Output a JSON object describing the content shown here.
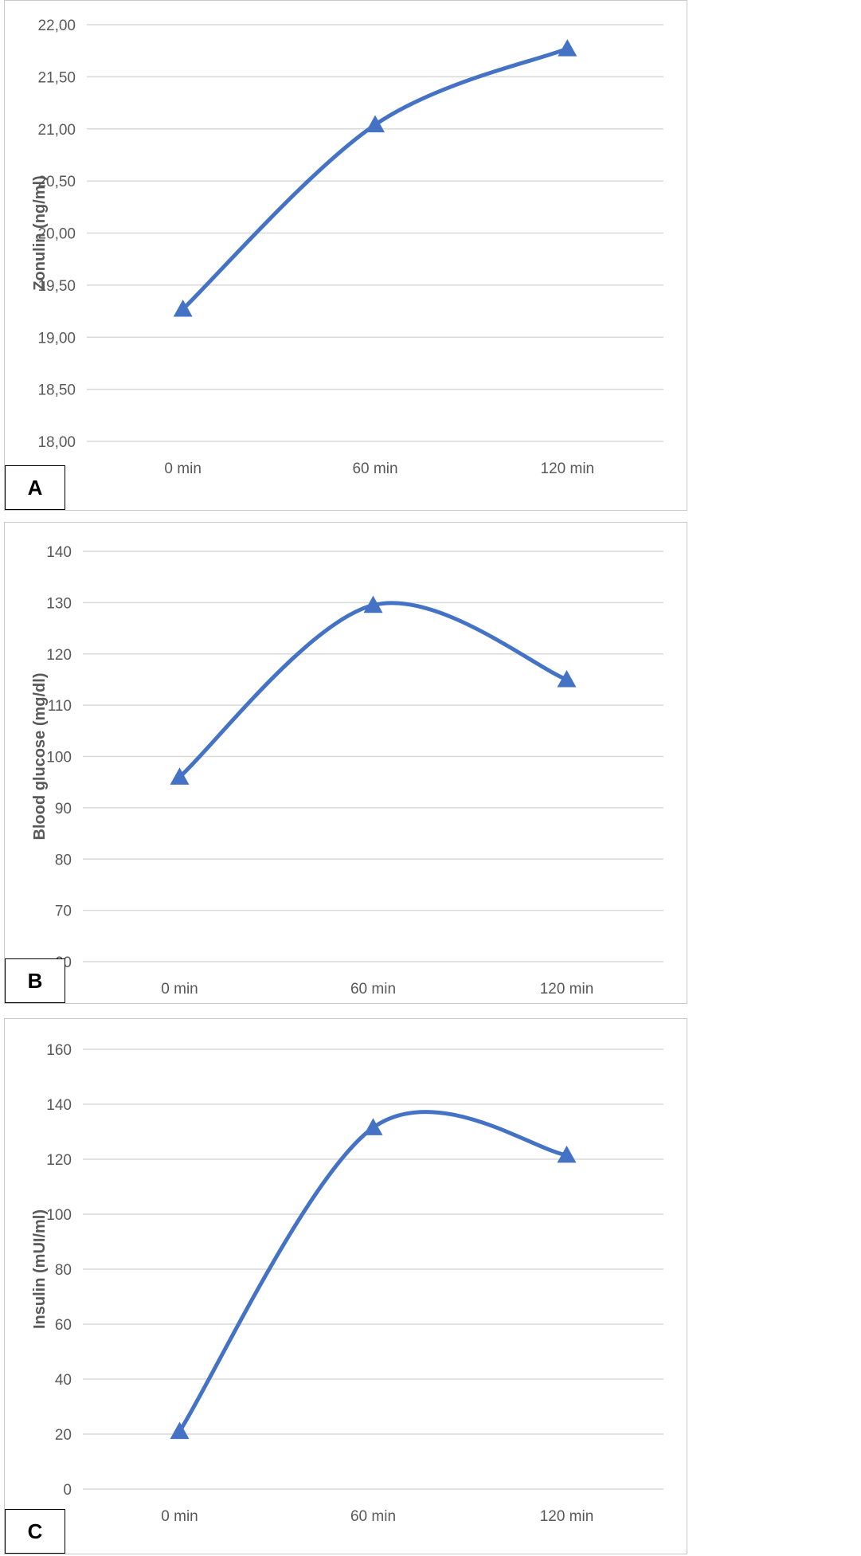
{
  "chart_data": [
    {
      "type": "line",
      "panel": "A",
      "categories": [
        "0 min",
        "60 min",
        "120 min"
      ],
      "values": [
        19.27,
        21.04,
        21.77
      ],
      "title": "",
      "xlabel": "",
      "ylabel": "Zonulin (ng/ml)",
      "ylim": [
        18,
        22
      ],
      "ytick_labels": [
        "18,00",
        "18,50",
        "19,00",
        "19,50",
        "20,00",
        "20,50",
        "21,00",
        "21,50",
        "22,00"
      ],
      "ytick_values": [
        18,
        18.5,
        19,
        19.5,
        20,
        20.5,
        21,
        21.5,
        22
      ],
      "grid": true,
      "smooth": true,
      "marker": "triangle",
      "color": "#4472c4"
    },
    {
      "type": "line",
      "panel": "B",
      "categories": [
        "0 min",
        "60 min",
        "120 min"
      ],
      "values": [
        96,
        129.5,
        115
      ],
      "title": "",
      "xlabel": "",
      "ylabel": "Blood glucose (mg/dl)",
      "ylim": [
        60,
        140
      ],
      "ytick_labels": [
        "60",
        "70",
        "80",
        "90",
        "100",
        "110",
        "120",
        "130",
        "140"
      ],
      "ytick_values": [
        60,
        70,
        80,
        90,
        100,
        110,
        120,
        130,
        140
      ],
      "grid": true,
      "smooth": true,
      "marker": "triangle",
      "color": "#4472c4"
    },
    {
      "type": "line",
      "panel": "C",
      "categories": [
        "0 min",
        "60 min",
        "120 min"
      ],
      "values": [
        21,
        131.5,
        121.5
      ],
      "title": "",
      "xlabel": "",
      "ylabel": "Insulin (mUI/ml)",
      "ylim": [
        0,
        160
      ],
      "ytick_labels": [
        "0",
        "20",
        "40",
        "60",
        "80",
        "100",
        "120",
        "140",
        "160"
      ],
      "ytick_values": [
        0,
        20,
        40,
        60,
        80,
        100,
        120,
        140,
        160
      ],
      "grid": true,
      "smooth": true,
      "marker": "triangle",
      "color": "#4472c4"
    }
  ],
  "panels": {
    "a": {
      "letter": "A"
    },
    "b": {
      "letter": "B"
    },
    "c": {
      "letter": "C"
    }
  },
  "colors": {
    "series": "#4472c4",
    "grid": "#d9d9d9",
    "text": "#595959"
  }
}
